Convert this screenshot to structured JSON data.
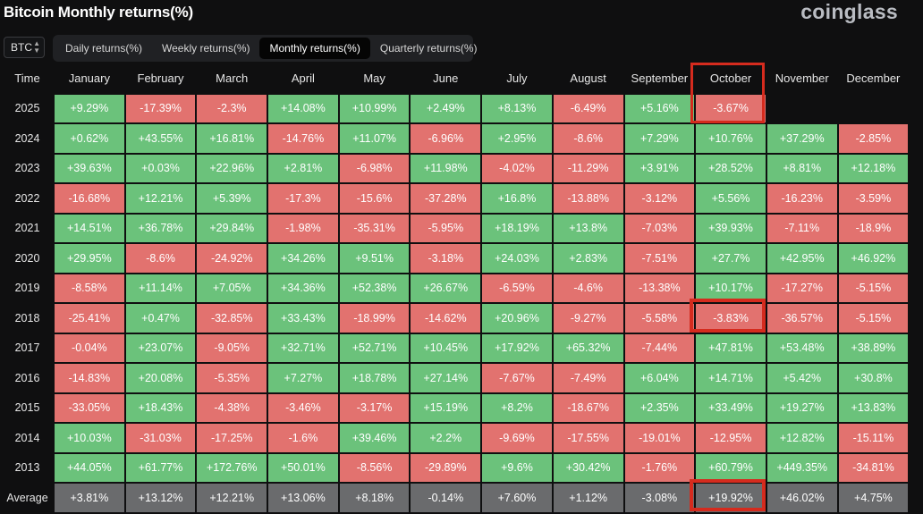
{
  "page_title": "Bitcoin Monthly returns(%)",
  "brand": "coinglass",
  "asset_selector": {
    "value": "BTC"
  },
  "tabs": [
    {
      "label": "Daily returns(%)",
      "active": false
    },
    {
      "label": "Weekly returns(%)",
      "active": false
    },
    {
      "label": "Monthly returns(%)",
      "active": true
    },
    {
      "label": "Quarterly returns(%)",
      "active": false
    }
  ],
  "table": {
    "header": [
      "Time",
      "January",
      "February",
      "March",
      "April",
      "May",
      "June",
      "July",
      "August",
      "September",
      "October",
      "November",
      "December"
    ],
    "rows": [
      {
        "year": "2025",
        "values": [
          "+9.29%",
          "-17.39%",
          "-2.3%",
          "+14.08%",
          "+10.99%",
          "+2.49%",
          "+8.13%",
          "-6.49%",
          "+5.16%",
          "-3.67%",
          "",
          ""
        ]
      },
      {
        "year": "2024",
        "values": [
          "+0.62%",
          "+43.55%",
          "+16.81%",
          "-14.76%",
          "+11.07%",
          "-6.96%",
          "+2.95%",
          "-8.6%",
          "+7.29%",
          "+10.76%",
          "+37.29%",
          "-2.85%"
        ]
      },
      {
        "year": "2023",
        "values": [
          "+39.63%",
          "+0.03%",
          "+22.96%",
          "+2.81%",
          "-6.98%",
          "+11.98%",
          "-4.02%",
          "-11.29%",
          "+3.91%",
          "+28.52%",
          "+8.81%",
          "+12.18%"
        ]
      },
      {
        "year": "2022",
        "values": [
          "-16.68%",
          "+12.21%",
          "+5.39%",
          "-17.3%",
          "-15.6%",
          "-37.28%",
          "+16.8%",
          "-13.88%",
          "-3.12%",
          "+5.56%",
          "-16.23%",
          "-3.59%"
        ]
      },
      {
        "year": "2021",
        "values": [
          "+14.51%",
          "+36.78%",
          "+29.84%",
          "-1.98%",
          "-35.31%",
          "-5.95%",
          "+18.19%",
          "+13.8%",
          "-7.03%",
          "+39.93%",
          "-7.11%",
          "-18.9%"
        ]
      },
      {
        "year": "2020",
        "values": [
          "+29.95%",
          "-8.6%",
          "-24.92%",
          "+34.26%",
          "+9.51%",
          "-3.18%",
          "+24.03%",
          "+2.83%",
          "-7.51%",
          "+27.7%",
          "+42.95%",
          "+46.92%"
        ]
      },
      {
        "year": "2019",
        "values": [
          "-8.58%",
          "+11.14%",
          "+7.05%",
          "+34.36%",
          "+52.38%",
          "+26.67%",
          "-6.59%",
          "-4.6%",
          "-13.38%",
          "+10.17%",
          "-17.27%",
          "-5.15%"
        ]
      },
      {
        "year": "2018",
        "values": [
          "-25.41%",
          "+0.47%",
          "-32.85%",
          "+33.43%",
          "-18.99%",
          "-14.62%",
          "+20.96%",
          "-9.27%",
          "-5.58%",
          "-3.83%",
          "-36.57%",
          "-5.15%"
        ]
      },
      {
        "year": "2017",
        "values": [
          "-0.04%",
          "+23.07%",
          "-9.05%",
          "+32.71%",
          "+52.71%",
          "+10.45%",
          "+17.92%",
          "+65.32%",
          "-7.44%",
          "+47.81%",
          "+53.48%",
          "+38.89%"
        ]
      },
      {
        "year": "2016",
        "values": [
          "-14.83%",
          "+20.08%",
          "-5.35%",
          "+7.27%",
          "+18.78%",
          "+27.14%",
          "-7.67%",
          "-7.49%",
          "+6.04%",
          "+14.71%",
          "+5.42%",
          "+30.8%"
        ]
      },
      {
        "year": "2015",
        "values": [
          "-33.05%",
          "+18.43%",
          "-4.38%",
          "-3.46%",
          "-3.17%",
          "+15.19%",
          "+8.2%",
          "-18.67%",
          "+2.35%",
          "+33.49%",
          "+19.27%",
          "+13.83%"
        ]
      },
      {
        "year": "2014",
        "values": [
          "+10.03%",
          "-31.03%",
          "-17.25%",
          "-1.6%",
          "+39.46%",
          "+2.2%",
          "-9.69%",
          "-17.55%",
          "-19.01%",
          "-12.95%",
          "+12.82%",
          "-15.11%"
        ]
      },
      {
        "year": "2013",
        "values": [
          "+44.05%",
          "+61.77%",
          "+172.76%",
          "+50.01%",
          "-8.56%",
          "-29.89%",
          "+9.6%",
          "+30.42%",
          "-1.76%",
          "+60.79%",
          "+449.35%",
          "-34.81%"
        ]
      }
    ],
    "average": {
      "label": "Average",
      "values": [
        "+3.81%",
        "+13.12%",
        "+12.21%",
        "+13.06%",
        "+8.18%",
        "-0.14%",
        "+7.60%",
        "+1.12%",
        "-3.08%",
        "+19.92%",
        "+46.02%",
        "+4.75%"
      ]
    }
  },
  "colors": {
    "positive": "#6bc27b",
    "negative": "#e2726f",
    "average": "#6a6b6d",
    "highlight": "#d52b1e"
  }
}
